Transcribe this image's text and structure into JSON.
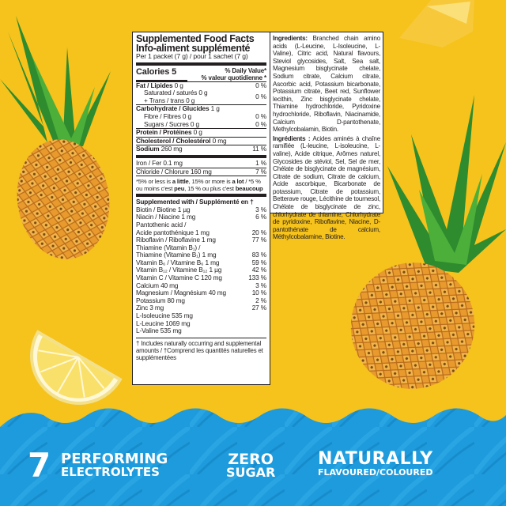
{
  "colors": {
    "background": "#f6c21c",
    "banner": "#1e9bdc",
    "text": "#231f20"
  },
  "label": {
    "title_en": "Supplemented Food Facts",
    "title_fr": "Info-aliment supplémenté",
    "serving": "Per 1 packet (7 g) / pour 1 sachet (7 g)",
    "calories": "Calories 5",
    "dv_en": "% Daily Value*",
    "dv_fr": "% valeur quotidienne *",
    "fat": {
      "label": "Fat / Lipides",
      "amount": "0 g",
      "dv": "0 %"
    },
    "saturated": "Saturated / saturés 0 g",
    "trans": "+ Trans / trans 0 g",
    "sat_trans_dv": "0 %",
    "carb": {
      "label": "Carbohydrate / Glucides",
      "amount": "1 g"
    },
    "fibre": {
      "label": "Fibre / Fibres 0 g",
      "dv": "0 %"
    },
    "sugars": {
      "label": "Sugars / Sucres 0 g",
      "dv": "0 %"
    },
    "protein": {
      "label": "Protein / Protéines",
      "amount": "0 g"
    },
    "cholesterol": {
      "label": "Cholesterol / Cholestérol",
      "amount": "0 mg"
    },
    "sodium": {
      "label": "Sodium",
      "amount": "260 mg",
      "dv": "11 %"
    },
    "iron": {
      "label": "Iron / Fer 0.1 mg",
      "dv": "1 %"
    },
    "chloride": {
      "label": "Chloride / Chlorure 160 mg",
      "dv": "7 %"
    },
    "footnote": {
      "p1": "*5% or less is ",
      "little": "a little",
      "p2": ", 15% or more is ",
      "lot": "a lot",
      "p3": " / *5 % ou moins c'est ",
      "peu": "peu",
      "p4": ", 15 % ou plus c'est ",
      "beaucoup": "beaucoup"
    },
    "supp_header": "Supplemented with / Supplémenté en †",
    "supplements": [
      {
        "label": "Biotin / Biotine 1 µg",
        "dv": "3 %"
      },
      {
        "label": "Niacin / Niacine 1 mg",
        "dv": "6 %"
      },
      {
        "label": "Pantothenic acid /",
        "dv": ""
      },
      {
        "label": "Acide pantothénique 1 mg",
        "dv": "20 %"
      },
      {
        "label": "Riboflavin / Riboflavine 1 mg",
        "dv": "77 %"
      },
      {
        "label": "Thiamine (Vitamin B₁) /",
        "dv": ""
      },
      {
        "label": "Thiamine (Vitamine B₁) 1 mg",
        "dv": "83 %"
      },
      {
        "label": "Vitamin B₆ / Vitamine B₆ 1 mg",
        "dv": "59 %"
      },
      {
        "label": "Vitamin B₁₂ / Vitamine B₁₂ 1 µg",
        "dv": "42 %"
      },
      {
        "label": "Vitamin C / Vitamine C 120 mg",
        "dv": "133 %"
      },
      {
        "label": "Calcium 40 mg",
        "dv": "3 %"
      },
      {
        "label": "Magnesium / Magnésium 40 mg",
        "dv": "10 %"
      },
      {
        "label": "Potassium 80 mg",
        "dv": "2 %"
      },
      {
        "label": "Zinc 3 mg",
        "dv": "27 %"
      },
      {
        "label": "L-Isoleucine 535 mg",
        "dv": ""
      },
      {
        "label": "L-Leucine 1069 mg",
        "dv": ""
      },
      {
        "label": "L-Valine 535 mg",
        "dv": ""
      }
    ],
    "supp_footnote": "† Includes naturally occurring and supplemental amounts / †Comprend les quantités naturelles et supplémentées"
  },
  "ingredients": {
    "en_label": "Ingredients:",
    "en_text": " Branched chain amino acids (L-Leucine, L-Isoleucine, L-Valine), Citric acid, Natural flavours, Steviol glycosides, Salt, Sea salt, Magnesium bisglycinate chelate, Sodium citrate, Calcium citrate, Ascorbic acid, Potassium bicarbonate, Potassium citrate, Beet red, Sunflower lecithin, Zinc bisglycinate chelate, Thiamine hydrochloride, Pyridoxine hydrochloride, Riboflavin, Niacinamide, Calcium D-pantothenate, Methylcobalamin, Biotin.",
    "fr_label": "Ingrédients :",
    "fr_text": " Acides aminés à chaîne ramifiée (L-leucine, L-isoleucine, L-valine), Acide citrique, Arômes naturel, Glycosides de stéviol, Sel, Sel de mer, Chélate de bisglycinate de magnésium, Citrate de sodium, Citrate de calcium, Acide ascorbique, Bicarbonate de potassium, Citrate de potassium, Betterave rouge, Lécithine de tournesol, Chélate de bisglycinate de zinc, chlorhydrate de thiamine, Chlorhydrate de pyridoxine, Riboflavine, Niacine, D-pantothénate de calcium, Méthylcobalamine, Biotine."
  },
  "banner": {
    "number": "7",
    "line1a": "PERFORMING",
    "line1b": "ELECTROLYTES",
    "line2a": "ZERO",
    "line2b": "SUGAR",
    "line3a": "NATURALLY",
    "line3b": "FLAVOURED/COLOURED"
  }
}
